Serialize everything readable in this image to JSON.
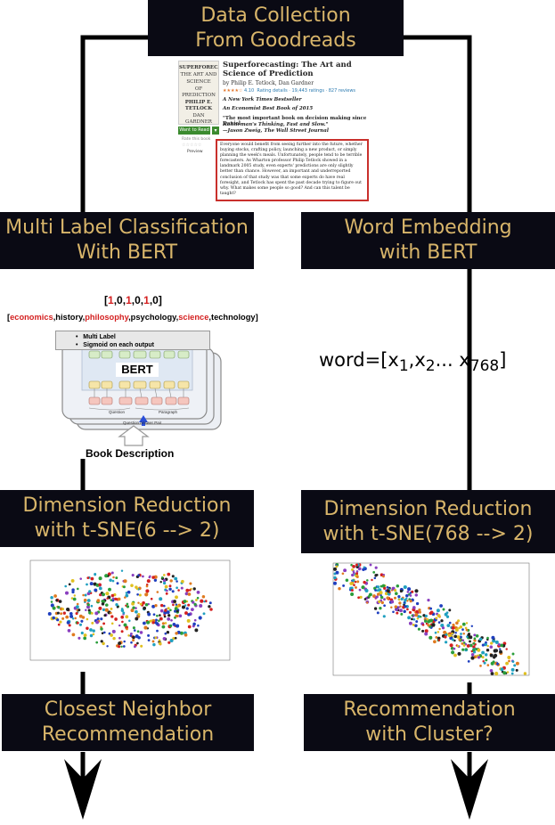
{
  "boxes": {
    "collection": {
      "line1": "Data Collection",
      "line2": "From Goodreads"
    },
    "classification": {
      "line1": "Multi Label Classification",
      "line2": "With BERT"
    },
    "embedding": {
      "line1": "Word Embedding",
      "line2": "with BERT"
    },
    "reduction_left": {
      "line1": "Dimension Reduction",
      "line2": "with t-SNE(6 --> 2)"
    },
    "reduction_right": {
      "line1": "Dimension Reduction",
      "line2": "with t-SNE(768 --> 2)"
    },
    "recommend_left": {
      "line1": "Closest Neighbor",
      "line2": "Recommendation"
    },
    "recommend_right": {
      "line1": "Recommendation",
      "line2": "with Cluster?"
    }
  },
  "goodreads": {
    "cover_text": [
      "SUPERFORECASTING",
      "THE ART AND",
      "SCIENCE",
      "OF PREDICTION",
      "PHILIP E. TETLOCK",
      "DAN GARDNER"
    ],
    "title_line1": "Superforecasting: The Art and",
    "title_line2": "Science of Prediction",
    "author": "by Philip E. Tetlock, Dan Gardner",
    "rating": "4.10",
    "rating_details": "Rating details · 19,443 ratings · 827 reviews",
    "line_bestseller": "A New York Times Bestseller",
    "line_economist": "An Economist Best Book of 2015",
    "quote_line1": "\"The most important book on decision making since Daniel",
    "quote_line2": "Kahneman's Thinking, Fast and Slow.\"",
    "quote_line3": "—Jason Zweig, The Wall Street Journal",
    "want_to_read": "Want to Read",
    "rate_this_book": "Rate this book",
    "preview": "Preview",
    "description": "Everyone would benefit from seeing further into the future, whether buying stocks, crafting policy, launching a new product, or simply planning the week's meals. Unfortunately, people tend to be terrible forecasters. As Wharton professor Philip Tetlock showed in a landmark 2005 study, even experts' predictions are only slightly better than chance. However, an important and underreported conclusion of that study was that some experts do have real foresight, and Tetlock has spent the past decade trying to figure out why. What makes some people so good? And can this talent be taught?"
  },
  "classification": {
    "vector": [
      "1",
      "0",
      "1",
      "0",
      "1",
      "0"
    ],
    "vector_highlight": [
      true,
      false,
      true,
      false,
      true,
      false
    ],
    "labels": [
      "economics",
      "history",
      "philosophy",
      "psychology",
      "science",
      "technology"
    ],
    "labels_highlight": [
      true,
      false,
      true,
      false,
      true,
      false
    ],
    "header_bullet1": "Multi Label",
    "header_bullet2": "Sigmoid on each output",
    "bert_word": "BERT",
    "question": "Question",
    "paragraph": "Paragraph",
    "pair": "Question Answer Pair",
    "book_description": "Book Description"
  },
  "embedding": {
    "formula_prefix": "word=[x",
    "sub1": "1",
    "sep1": ",x",
    "sub2": "2",
    "sep2": "... x",
    "sub3": "768",
    "suffix": "]"
  },
  "colors": {
    "box_bg": "#0a0a14",
    "box_text": "#d8b56a",
    "highlight": "#d42020",
    "desc_border": "#c9302c"
  }
}
